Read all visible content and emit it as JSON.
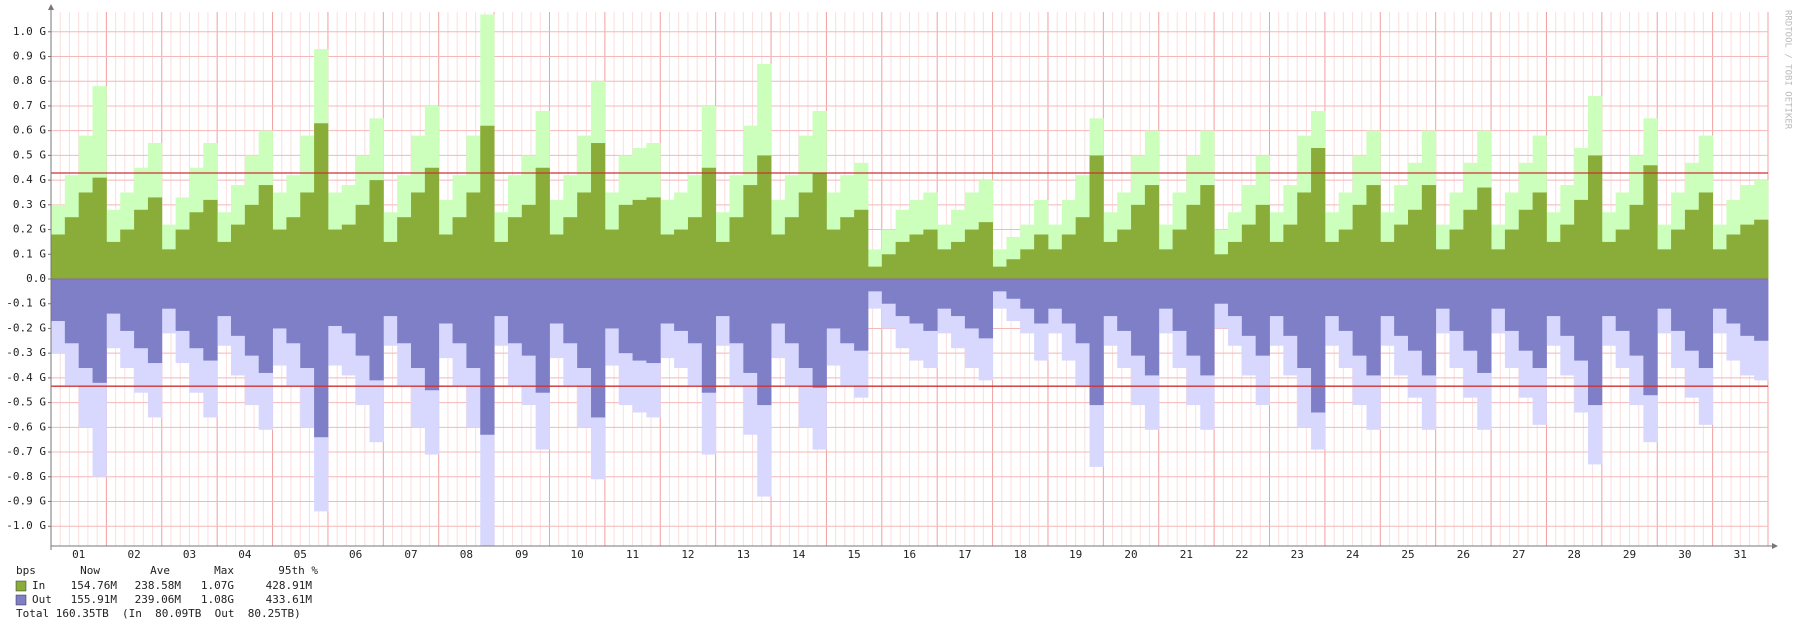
{
  "chart_data": {
    "type": "step-area",
    "watermark": "RRDTOOL / TOBI OETIKER",
    "xlim": [
      0,
      31
    ],
    "ylim": [
      -1.08,
      1.08
    ],
    "xticks": [
      {
        "value": 0.5,
        "label": "01"
      },
      {
        "value": 1.5,
        "label": "02"
      },
      {
        "value": 2.5,
        "label": "03"
      },
      {
        "value": 3.5,
        "label": "04"
      },
      {
        "value": 4.5,
        "label": "05"
      },
      {
        "value": 5.5,
        "label": "06"
      },
      {
        "value": 6.5,
        "label": "07"
      },
      {
        "value": 7.5,
        "label": "08"
      },
      {
        "value": 8.5,
        "label": "09"
      },
      {
        "value": 9.5,
        "label": "10"
      },
      {
        "value": 10.5,
        "label": "11"
      },
      {
        "value": 11.5,
        "label": "12"
      },
      {
        "value": 12.5,
        "label": "13"
      },
      {
        "value": 13.5,
        "label": "14"
      },
      {
        "value": 14.5,
        "label": "15"
      },
      {
        "value": 15.5,
        "label": "16"
      },
      {
        "value": 16.5,
        "label": "17"
      },
      {
        "value": 17.5,
        "label": "18"
      },
      {
        "value": 18.5,
        "label": "19"
      },
      {
        "value": 19.5,
        "label": "20"
      },
      {
        "value": 20.5,
        "label": "21"
      },
      {
        "value": 21.5,
        "label": "22"
      },
      {
        "value": 22.5,
        "label": "23"
      },
      {
        "value": 23.5,
        "label": "24"
      },
      {
        "value": 24.5,
        "label": "25"
      },
      {
        "value": 25.5,
        "label": "26"
      },
      {
        "value": 26.5,
        "label": "27"
      },
      {
        "value": 27.5,
        "label": "28"
      },
      {
        "value": 28.5,
        "label": "29"
      },
      {
        "value": 29.5,
        "label": "30"
      },
      {
        "value": 30.5,
        "label": "31"
      }
    ],
    "yticks": [
      {
        "value": 1.0,
        "label": "1.0 G"
      },
      {
        "value": 0.9,
        "label": "0.9 G"
      },
      {
        "value": 0.8,
        "label": "0.8 G"
      },
      {
        "value": 0.7,
        "label": "0.7 G"
      },
      {
        "value": 0.6,
        "label": "0.6 G"
      },
      {
        "value": 0.5,
        "label": "0.5 G"
      },
      {
        "value": 0.4,
        "label": "0.4 G"
      },
      {
        "value": 0.3,
        "label": "0.3 G"
      },
      {
        "value": 0.2,
        "label": "0.2 G"
      },
      {
        "value": 0.1,
        "label": "0.1 G"
      },
      {
        "value": 0,
        "label": "0.0"
      },
      {
        "value": -0.1,
        "label": "-0.1 G"
      },
      {
        "value": -0.2,
        "label": "-0.2 G"
      },
      {
        "value": -0.3,
        "label": "-0.3 G"
      },
      {
        "value": -0.4,
        "label": "-0.4 G"
      },
      {
        "value": -0.5,
        "label": "-0.5 G"
      },
      {
        "value": -0.6,
        "label": "-0.6 G"
      },
      {
        "value": -0.7,
        "label": "-0.7 G"
      },
      {
        "value": -0.8,
        "label": "-0.8 G"
      },
      {
        "value": -0.9,
        "label": "-0.9 G"
      },
      {
        "value": -1.0,
        "label": "-1.0 G"
      }
    ],
    "grid": true,
    "hrules": [
      {
        "value": 0.42891,
        "color": "#cc3333"
      },
      {
        "value": -0.43361,
        "color": "#cc3333"
      }
    ],
    "x": [
      0,
      0.25,
      0.5,
      0.75,
      1,
      1.25,
      1.5,
      1.75,
      2,
      2.25,
      2.5,
      2.75,
      3,
      3.25,
      3.5,
      3.75,
      4,
      4.25,
      4.5,
      4.75,
      5,
      5.25,
      5.5,
      5.75,
      6,
      6.25,
      6.5,
      6.75,
      7,
      7.25,
      7.5,
      7.75,
      8,
      8.25,
      8.5,
      8.75,
      9,
      9.25,
      9.5,
      9.75,
      10,
      10.25,
      10.5,
      10.75,
      11,
      11.25,
      11.5,
      11.75,
      12,
      12.25,
      12.5,
      12.75,
      13,
      13.25,
      13.5,
      13.75,
      14,
      14.25,
      14.5,
      14.75,
      15,
      15.25,
      15.5,
      15.75,
      16,
      16.25,
      16.5,
      16.75,
      17,
      17.25,
      17.5,
      17.75,
      18,
      18.25,
      18.5,
      18.75,
      19,
      19.25,
      19.5,
      19.75,
      20,
      20.25,
      20.5,
      20.75,
      21,
      21.25,
      21.5,
      21.75,
      22,
      22.25,
      22.5,
      22.75,
      23,
      23.25,
      23.5,
      23.75,
      24,
      24.25,
      24.5,
      24.75,
      25,
      25.25,
      25.5,
      25.75,
      26,
      26.25,
      26.5,
      26.75,
      27,
      27.25,
      27.5,
      27.75,
      28,
      28.25,
      28.5,
      28.75,
      29,
      29.25,
      29.5,
      29.75,
      30,
      30.25,
      30.5,
      30.75
    ],
    "series": [
      {
        "name": "In",
        "color": "#8aad3a",
        "max_color": "#ccffbb",
        "values": [
          0.18,
          0.25,
          0.35,
          0.41,
          0.15,
          0.2,
          0.28,
          0.33,
          0.12,
          0.2,
          0.27,
          0.32,
          0.15,
          0.22,
          0.3,
          0.38,
          0.2,
          0.25,
          0.35,
          0.63,
          0.2,
          0.22,
          0.3,
          0.4,
          0.15,
          0.25,
          0.35,
          0.45,
          0.18,
          0.25,
          0.35,
          0.62,
          0.15,
          0.25,
          0.3,
          0.45,
          0.18,
          0.25,
          0.35,
          0.55,
          0.2,
          0.3,
          0.32,
          0.33,
          0.18,
          0.2,
          0.25,
          0.45,
          0.15,
          0.25,
          0.38,
          0.5,
          0.18,
          0.25,
          0.35,
          0.43,
          0.2,
          0.25,
          0.28,
          0.05,
          0.1,
          0.15,
          0.18,
          0.2,
          0.12,
          0.15,
          0.2,
          0.23,
          0.05,
          0.08,
          0.12,
          0.18,
          0.12,
          0.18,
          0.25,
          0.5,
          0.15,
          0.2,
          0.3,
          0.38,
          0.12,
          0.2,
          0.3,
          0.38,
          0.1,
          0.15,
          0.22,
          0.3,
          0.15,
          0.22,
          0.35,
          0.53,
          0.15,
          0.2,
          0.3,
          0.38,
          0.15,
          0.22,
          0.28,
          0.38,
          0.12,
          0.2,
          0.28,
          0.37,
          0.12,
          0.2,
          0.28,
          0.35,
          0.15,
          0.22,
          0.32,
          0.5,
          0.15,
          0.2,
          0.3,
          0.46,
          0.12,
          0.2,
          0.28,
          0.35,
          0.12,
          0.18,
          0.22,
          0.24
        ],
        "max_values": [
          0.3,
          0.42,
          0.58,
          0.78,
          0.28,
          0.35,
          0.45,
          0.55,
          0.22,
          0.33,
          0.45,
          0.55,
          0.27,
          0.38,
          0.5,
          0.6,
          0.35,
          0.42,
          0.58,
          0.93,
          0.35,
          0.38,
          0.5,
          0.65,
          0.27,
          0.42,
          0.58,
          0.7,
          0.32,
          0.42,
          0.58,
          1.07,
          0.27,
          0.42,
          0.5,
          0.68,
          0.32,
          0.42,
          0.58,
          0.8,
          0.35,
          0.5,
          0.53,
          0.55,
          0.32,
          0.35,
          0.42,
          0.7,
          0.27,
          0.42,
          0.62,
          0.87,
          0.32,
          0.42,
          0.58,
          0.68,
          0.35,
          0.42,
          0.47,
          0.12,
          0.2,
          0.28,
          0.32,
          0.35,
          0.22,
          0.28,
          0.35,
          0.4,
          0.12,
          0.17,
          0.22,
          0.32,
          0.22,
          0.32,
          0.42,
          0.65,
          0.27,
          0.35,
          0.5,
          0.6,
          0.22,
          0.35,
          0.5,
          0.6,
          0.2,
          0.27,
          0.38,
          0.5,
          0.27,
          0.38,
          0.58,
          0.68,
          0.27,
          0.35,
          0.5,
          0.6,
          0.27,
          0.38,
          0.47,
          0.6,
          0.22,
          0.35,
          0.47,
          0.6,
          0.22,
          0.35,
          0.47,
          0.58,
          0.27,
          0.38,
          0.53,
          0.74,
          0.27,
          0.35,
          0.5,
          0.65,
          0.22,
          0.35,
          0.47,
          0.58,
          0.22,
          0.32,
          0.38,
          0.4
        ]
      },
      {
        "name": "Out",
        "color": "#7f7fc8",
        "max_color": "#d8d8ff",
        "values": [
          -0.17,
          -0.26,
          -0.36,
          -0.42,
          -0.14,
          -0.21,
          -0.28,
          -0.34,
          -0.12,
          -0.21,
          -0.28,
          -0.33,
          -0.15,
          -0.23,
          -0.31,
          -0.38,
          -0.2,
          -0.26,
          -0.36,
          -0.64,
          -0.19,
          -0.22,
          -0.31,
          -0.41,
          -0.15,
          -0.26,
          -0.36,
          -0.45,
          -0.18,
          -0.26,
          -0.36,
          -0.63,
          -0.15,
          -0.26,
          -0.31,
          -0.46,
          -0.18,
          -0.26,
          -0.36,
          -0.56,
          -0.2,
          -0.3,
          -0.33,
          -0.34,
          -0.18,
          -0.21,
          -0.26,
          -0.46,
          -0.15,
          -0.26,
          -0.38,
          -0.51,
          -0.18,
          -0.26,
          -0.36,
          -0.44,
          -0.2,
          -0.26,
          -0.29,
          -0.05,
          -0.1,
          -0.15,
          -0.18,
          -0.21,
          -0.12,
          -0.15,
          -0.2,
          -0.24,
          -0.05,
          -0.08,
          -0.12,
          -0.18,
          -0.12,
          -0.18,
          -0.26,
          -0.51,
          -0.15,
          -0.21,
          -0.31,
          -0.39,
          -0.12,
          -0.21,
          -0.31,
          -0.39,
          -0.1,
          -0.15,
          -0.23,
          -0.31,
          -0.15,
          -0.23,
          -0.36,
          -0.54,
          -0.15,
          -0.21,
          -0.31,
          -0.39,
          -0.15,
          -0.23,
          -0.29,
          -0.39,
          -0.12,
          -0.21,
          -0.29,
          -0.38,
          -0.12,
          -0.21,
          -0.29,
          -0.36,
          -0.15,
          -0.23,
          -0.33,
          -0.51,
          -0.15,
          -0.21,
          -0.31,
          -0.47,
          -0.12,
          -0.21,
          -0.29,
          -0.36,
          -0.12,
          -0.18,
          -0.23,
          -0.25
        ],
        "max_values": [
          -0.3,
          -0.43,
          -0.6,
          -0.8,
          -0.28,
          -0.36,
          -0.46,
          -0.56,
          -0.22,
          -0.34,
          -0.46,
          -0.56,
          -0.27,
          -0.39,
          -0.51,
          -0.61,
          -0.35,
          -0.43,
          -0.6,
          -0.94,
          -0.35,
          -0.39,
          -0.51,
          -0.66,
          -0.27,
          -0.43,
          -0.6,
          -0.71,
          -0.32,
          -0.43,
          -0.6,
          -1.08,
          -0.27,
          -0.43,
          -0.51,
          -0.69,
          -0.32,
          -0.43,
          -0.6,
          -0.81,
          -0.35,
          -0.51,
          -0.54,
          -0.56,
          -0.32,
          -0.36,
          -0.43,
          -0.71,
          -0.27,
          -0.43,
          -0.63,
          -0.88,
          -0.32,
          -0.43,
          -0.6,
          -0.69,
          -0.35,
          -0.43,
          -0.48,
          -0.12,
          -0.2,
          -0.28,
          -0.33,
          -0.36,
          -0.22,
          -0.28,
          -0.36,
          -0.41,
          -0.12,
          -0.17,
          -0.22,
          -0.33,
          -0.22,
          -0.33,
          -0.43,
          -0.76,
          -0.27,
          -0.36,
          -0.51,
          -0.61,
          -0.22,
          -0.36,
          -0.51,
          -0.61,
          -0.2,
          -0.27,
          -0.39,
          -0.51,
          -0.27,
          -0.39,
          -0.6,
          -0.69,
          -0.27,
          -0.36,
          -0.51,
          -0.61,
          -0.27,
          -0.39,
          -0.48,
          -0.61,
          -0.22,
          -0.36,
          -0.48,
          -0.61,
          -0.22,
          -0.36,
          -0.48,
          -0.59,
          -0.27,
          -0.39,
          -0.54,
          -0.75,
          -0.27,
          -0.36,
          -0.51,
          -0.66,
          -0.22,
          -0.36,
          -0.48,
          -0.59,
          -0.22,
          -0.33,
          -0.39,
          -0.41
        ]
      }
    ],
    "legend": {
      "header": [
        "bps",
        "Now",
        "Ave",
        "Max",
        "95th %"
      ],
      "rows": [
        [
          "154.76M",
          "238.58M",
          "1.07G",
          "428.91M"
        ],
        [
          "155.91M",
          "239.06M",
          "1.08G",
          "433.61M"
        ]
      ],
      "total": "Total 160.35TB  (In  80.09TB  Out  80.25TB)"
    }
  }
}
